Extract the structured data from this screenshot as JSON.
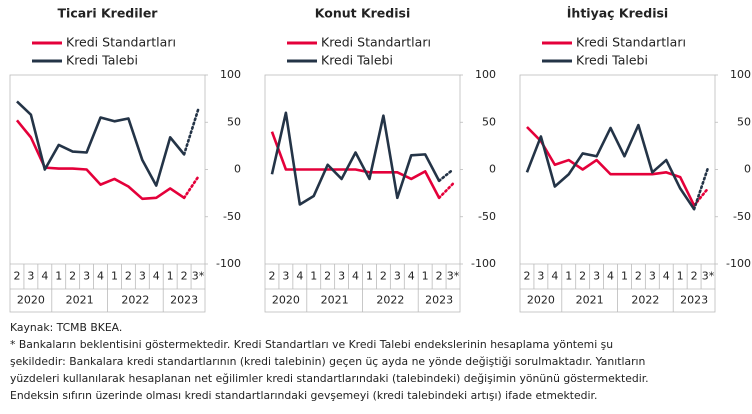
{
  "chart_data": [
    {
      "type": "line",
      "title": "Ticari Krediler",
      "categories": [
        "2",
        "3",
        "4",
        "1",
        "2",
        "3",
        "4",
        "1",
        "2",
        "3",
        "4",
        "1",
        "2",
        "3*"
      ],
      "groups": [
        {
          "label": "2020",
          "count": 3
        },
        {
          "label": "2021",
          "count": 4
        },
        {
          "label": "2022",
          "count": 4
        },
        {
          "label": "2023",
          "count": 3
        }
      ],
      "series": [
        {
          "name": "Kredi Standartları",
          "color": "#e4003a",
          "values": [
            52,
            34,
            2,
            1,
            1,
            0,
            -16,
            -10,
            -18,
            -31,
            -30,
            -20,
            -30,
            -8
          ]
        },
        {
          "name": "Kredi Talebi",
          "color": "#243447",
          "values": [
            72,
            58,
            0,
            26,
            19,
            18,
            55,
            51,
            54,
            10,
            -17,
            34,
            16,
            63
          ]
        }
      ],
      "ylim": [
        -100,
        100
      ],
      "yticks": [
        -100,
        -50,
        0,
        50,
        100
      ],
      "last_segment_dotted": true
    },
    {
      "type": "line",
      "title": "Konut Kredisi",
      "categories": [
        "2",
        "3",
        "4",
        "1",
        "2",
        "3",
        "4",
        "1",
        "2",
        "3",
        "4",
        "1",
        "2",
        "3*"
      ],
      "groups": [
        {
          "label": "2020",
          "count": 3
        },
        {
          "label": "2021",
          "count": 4
        },
        {
          "label": "2022",
          "count": 4
        },
        {
          "label": "2023",
          "count": 3
        }
      ],
      "series": [
        {
          "name": "Kredi Standartları",
          "color": "#e4003a",
          "values": [
            40,
            0,
            0,
            0,
            0,
            0,
            0,
            -3,
            -3,
            -3,
            -10,
            -2,
            -30,
            -15
          ]
        },
        {
          "name": "Kredi Talebi",
          "color": "#243447",
          "values": [
            -5,
            60,
            -37,
            -28,
            5,
            -10,
            18,
            -10,
            57,
            -30,
            15,
            16,
            -12,
            0
          ]
        }
      ],
      "ylim": [
        -100,
        100
      ],
      "yticks": [
        -100,
        -50,
        0,
        50,
        100
      ],
      "last_segment_dotted": true
    },
    {
      "type": "line",
      "title": "İhtiyaç Kredisi",
      "categories": [
        "2",
        "3",
        "4",
        "1",
        "2",
        "3",
        "4",
        "1",
        "2",
        "3",
        "4",
        "1",
        "2",
        "3*"
      ],
      "groups": [
        {
          "label": "2020",
          "count": 3
        },
        {
          "label": "2021",
          "count": 4
        },
        {
          "label": "2022",
          "count": 4
        },
        {
          "label": "2023",
          "count": 3
        }
      ],
      "series": [
        {
          "name": "Kredi Standartları",
          "color": "#e4003a",
          "values": [
            45,
            30,
            5,
            10,
            0,
            10,
            -5,
            -5,
            -5,
            -5,
            -3,
            -8,
            -38,
            -20
          ]
        },
        {
          "name": "Kredi Talebi",
          "color": "#243447",
          "values": [
            -3,
            35,
            -18,
            -5,
            17,
            14,
            44,
            14,
            47,
            -3,
            10,
            -20,
            -42,
            2
          ]
        }
      ],
      "ylim": [
        -100,
        100
      ],
      "yticks": [
        -100,
        -50,
        0,
        50,
        100
      ],
      "last_segment_dotted": true
    }
  ],
  "source": "Kaynak: TCMB BKEA.",
  "note_lines": [
    "* Bankaların beklentisini göstermektedir. Kredi Standartları ve Kredi Talebi endekslerinin hesaplama yöntemi şu",
    "şekildedir: Bankalara kredi standartlarının (kredi talebinin) geçen üç ayda ne yönde değiştiği sorulmaktadır. Yanıtların",
    "yüzdeleri kullanılarak hesaplanan net eğilimler kredi standartlarındaki (talebindeki) değişimin yönünü göstermektedir.",
    "Endeksin sıfırın üzerinde olması kredi standartlarındaki gevşemeyi (kredi talebindeki artışı) ifade etmektedir."
  ]
}
